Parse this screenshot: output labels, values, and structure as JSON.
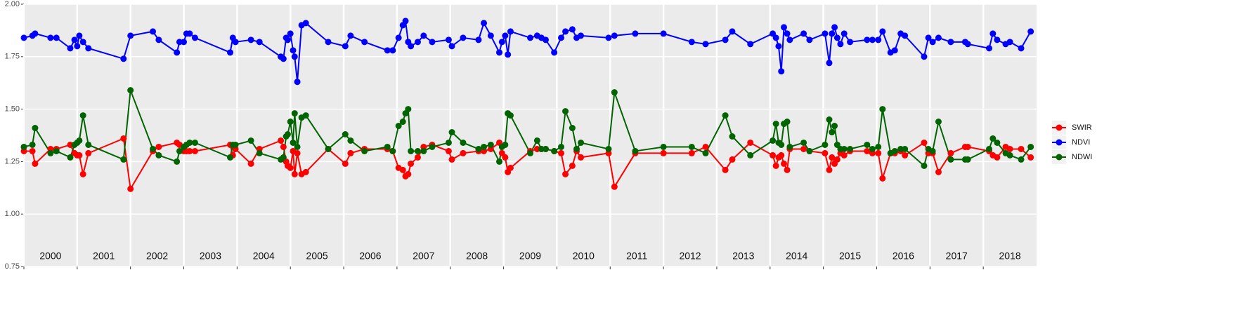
{
  "chart_data": {
    "type": "line",
    "x": [
      2000.0,
      2000.16,
      2000.21,
      2000.5,
      2000.61,
      2000.87,
      2000.95,
      2001.0,
      2001.04,
      2001.11,
      2001.21,
      2001.87,
      2002.0,
      2002.42,
      2002.53,
      2002.87,
      2002.92,
      2003.0,
      2003.05,
      2003.11,
      2003.21,
      2003.87,
      2003.92,
      2003.97,
      2004.26,
      2004.42,
      2004.82,
      2004.87,
      2004.92,
      2004.95,
      2005.0,
      2005.05,
      2005.08,
      2005.13,
      2005.21,
      2005.29,
      2005.71,
      2006.03,
      2006.13,
      2006.39,
      2006.82,
      2006.92,
      2007.03,
      2007.11,
      2007.16,
      2007.21,
      2007.26,
      2007.39,
      2007.5,
      2007.66,
      2007.97,
      2008.03,
      2008.24,
      2008.53,
      2008.63,
      2008.76,
      2008.92,
      2008.97,
      2009.03,
      2009.08,
      2009.13,
      2009.5,
      2009.63,
      2009.71,
      2009.79,
      2009.95,
      2010.08,
      2010.16,
      2010.29,
      2010.37,
      2010.45,
      2010.97,
      2011.08,
      2011.47,
      2012.0,
      2012.53,
      2012.79,
      2013.16,
      2013.29,
      2013.63,
      2014.05,
      2014.11,
      2014.16,
      2014.21,
      2014.26,
      2014.32,
      2014.37,
      2014.63,
      2014.74,
      2015.03,
      2015.11,
      2015.16,
      2015.21,
      2015.26,
      2015.32,
      2015.39,
      2015.5,
      2015.82,
      2015.92,
      2016.03,
      2016.11,
      2016.26,
      2016.34,
      2016.45,
      2016.53,
      2016.89,
      2016.97,
      2017.05,
      2017.16,
      2017.39,
      2017.66,
      2017.71,
      2018.11,
      2018.18,
      2018.26,
      2018.42,
      2018.5,
      2018.71,
      2018.89
    ],
    "series": [
      {
        "name": "SWIR",
        "color": "#ff0000",
        "values": [
          1.3,
          1.3,
          1.24,
          1.31,
          1.31,
          1.33,
          1.29,
          1.28,
          1.28,
          1.19,
          1.29,
          1.36,
          1.12,
          1.3,
          1.32,
          1.34,
          1.33,
          1.3,
          1.3,
          1.3,
          1.3,
          1.33,
          1.28,
          1.31,
          1.24,
          1.31,
          1.35,
          1.32,
          1.25,
          1.23,
          1.22,
          1.3,
          1.19,
          1.29,
          1.19,
          1.2,
          1.31,
          1.24,
          1.29,
          1.31,
          1.31,
          1.3,
          1.22,
          1.21,
          1.18,
          1.19,
          1.24,
          1.27,
          1.32,
          1.33,
          1.3,
          1.26,
          1.29,
          1.3,
          1.3,
          1.31,
          1.34,
          1.29,
          1.27,
          1.2,
          1.22,
          1.3,
          1.31,
          1.31,
          1.31,
          1.3,
          1.29,
          1.19,
          1.23,
          1.3,
          1.27,
          1.29,
          1.13,
          1.29,
          1.29,
          1.29,
          1.32,
          1.21,
          1.26,
          1.34,
          1.28,
          1.23,
          1.27,
          1.28,
          1.24,
          1.21,
          1.31,
          1.31,
          1.3,
          1.29,
          1.21,
          1.27,
          1.24,
          1.26,
          1.29,
          1.28,
          1.3,
          1.3,
          1.29,
          1.29,
          1.17,
          1.29,
          1.29,
          1.3,
          1.28,
          1.34,
          1.29,
          1.29,
          1.2,
          1.29,
          1.32,
          1.32,
          1.3,
          1.28,
          1.27,
          1.32,
          1.31,
          1.31,
          1.27
        ]
      },
      {
        "name": "NDVI",
        "color": "#0000ff",
        "values": [
          1.84,
          1.85,
          1.86,
          1.84,
          1.84,
          1.79,
          1.83,
          1.8,
          1.85,
          1.82,
          1.79,
          1.74,
          1.85,
          1.87,
          1.83,
          1.77,
          1.82,
          1.82,
          1.86,
          1.86,
          1.84,
          1.77,
          1.84,
          1.82,
          1.83,
          1.82,
          1.75,
          1.74,
          1.84,
          1.83,
          1.86,
          1.78,
          1.75,
          1.63,
          1.9,
          1.91,
          1.82,
          1.8,
          1.85,
          1.82,
          1.78,
          1.78,
          1.84,
          1.9,
          1.92,
          1.82,
          1.8,
          1.82,
          1.85,
          1.82,
          1.83,
          1.8,
          1.84,
          1.83,
          1.91,
          1.85,
          1.77,
          1.82,
          1.85,
          1.76,
          1.87,
          1.84,
          1.85,
          1.84,
          1.83,
          1.77,
          1.84,
          1.87,
          1.88,
          1.84,
          1.85,
          1.84,
          1.85,
          1.86,
          1.86,
          1.82,
          1.81,
          1.83,
          1.87,
          1.81,
          1.86,
          1.84,
          1.8,
          1.68,
          1.89,
          1.86,
          1.83,
          1.86,
          1.83,
          1.86,
          1.72,
          1.86,
          1.89,
          1.84,
          1.81,
          1.86,
          1.82,
          1.83,
          1.83,
          1.83,
          1.87,
          1.77,
          1.78,
          1.86,
          1.85,
          1.75,
          1.84,
          1.82,
          1.84,
          1.82,
          1.82,
          1.81,
          1.79,
          1.86,
          1.83,
          1.81,
          1.82,
          1.79,
          1.87
        ]
      },
      {
        "name": "NDWI",
        "color": "#006400",
        "values": [
          1.32,
          1.33,
          1.41,
          1.29,
          1.3,
          1.27,
          1.33,
          1.34,
          1.35,
          1.47,
          1.33,
          1.26,
          1.59,
          1.31,
          1.28,
          1.25,
          1.3,
          1.32,
          1.33,
          1.34,
          1.34,
          1.27,
          1.33,
          1.33,
          1.35,
          1.29,
          1.26,
          1.27,
          1.37,
          1.38,
          1.44,
          1.34,
          1.48,
          1.32,
          1.46,
          1.47,
          1.31,
          1.38,
          1.35,
          1.3,
          1.32,
          1.3,
          1.42,
          1.44,
          1.48,
          1.5,
          1.3,
          1.3,
          1.3,
          1.32,
          1.34,
          1.39,
          1.34,
          1.31,
          1.32,
          1.33,
          1.25,
          1.32,
          1.33,
          1.48,
          1.47,
          1.29,
          1.35,
          1.31,
          1.31,
          1.3,
          1.32,
          1.49,
          1.41,
          1.31,
          1.34,
          1.31,
          1.58,
          1.3,
          1.32,
          1.32,
          1.29,
          1.47,
          1.37,
          1.28,
          1.35,
          1.43,
          1.34,
          1.33,
          1.43,
          1.44,
          1.32,
          1.34,
          1.3,
          1.33,
          1.45,
          1.39,
          1.42,
          1.33,
          1.31,
          1.31,
          1.31,
          1.33,
          1.31,
          1.32,
          1.5,
          1.29,
          1.3,
          1.31,
          1.31,
          1.23,
          1.31,
          1.3,
          1.44,
          1.26,
          1.26,
          1.26,
          1.31,
          1.36,
          1.34,
          1.29,
          1.28,
          1.26,
          1.32
        ]
      }
    ],
    "xlim": [
      2000,
      2019
    ],
    "xticks": [
      2000,
      2001,
      2002,
      2003,
      2004,
      2005,
      2006,
      2007,
      2008,
      2009,
      2010,
      2011,
      2012,
      2013,
      2014,
      2015,
      2016,
      2017,
      2018
    ],
    "ylim": [
      0.75,
      2.0
    ],
    "yticks": [
      {
        "value": 0.75,
        "label": "0.75"
      },
      {
        "value": 1.0,
        "label": "1.00"
      },
      {
        "value": 1.25,
        "label": "1.25"
      },
      {
        "value": 1.5,
        "label": "1.50"
      },
      {
        "value": 1.75,
        "label": "1.75"
      },
      {
        "value": 2.0,
        "label": "2.00"
      }
    ],
    "grid": true
  }
}
